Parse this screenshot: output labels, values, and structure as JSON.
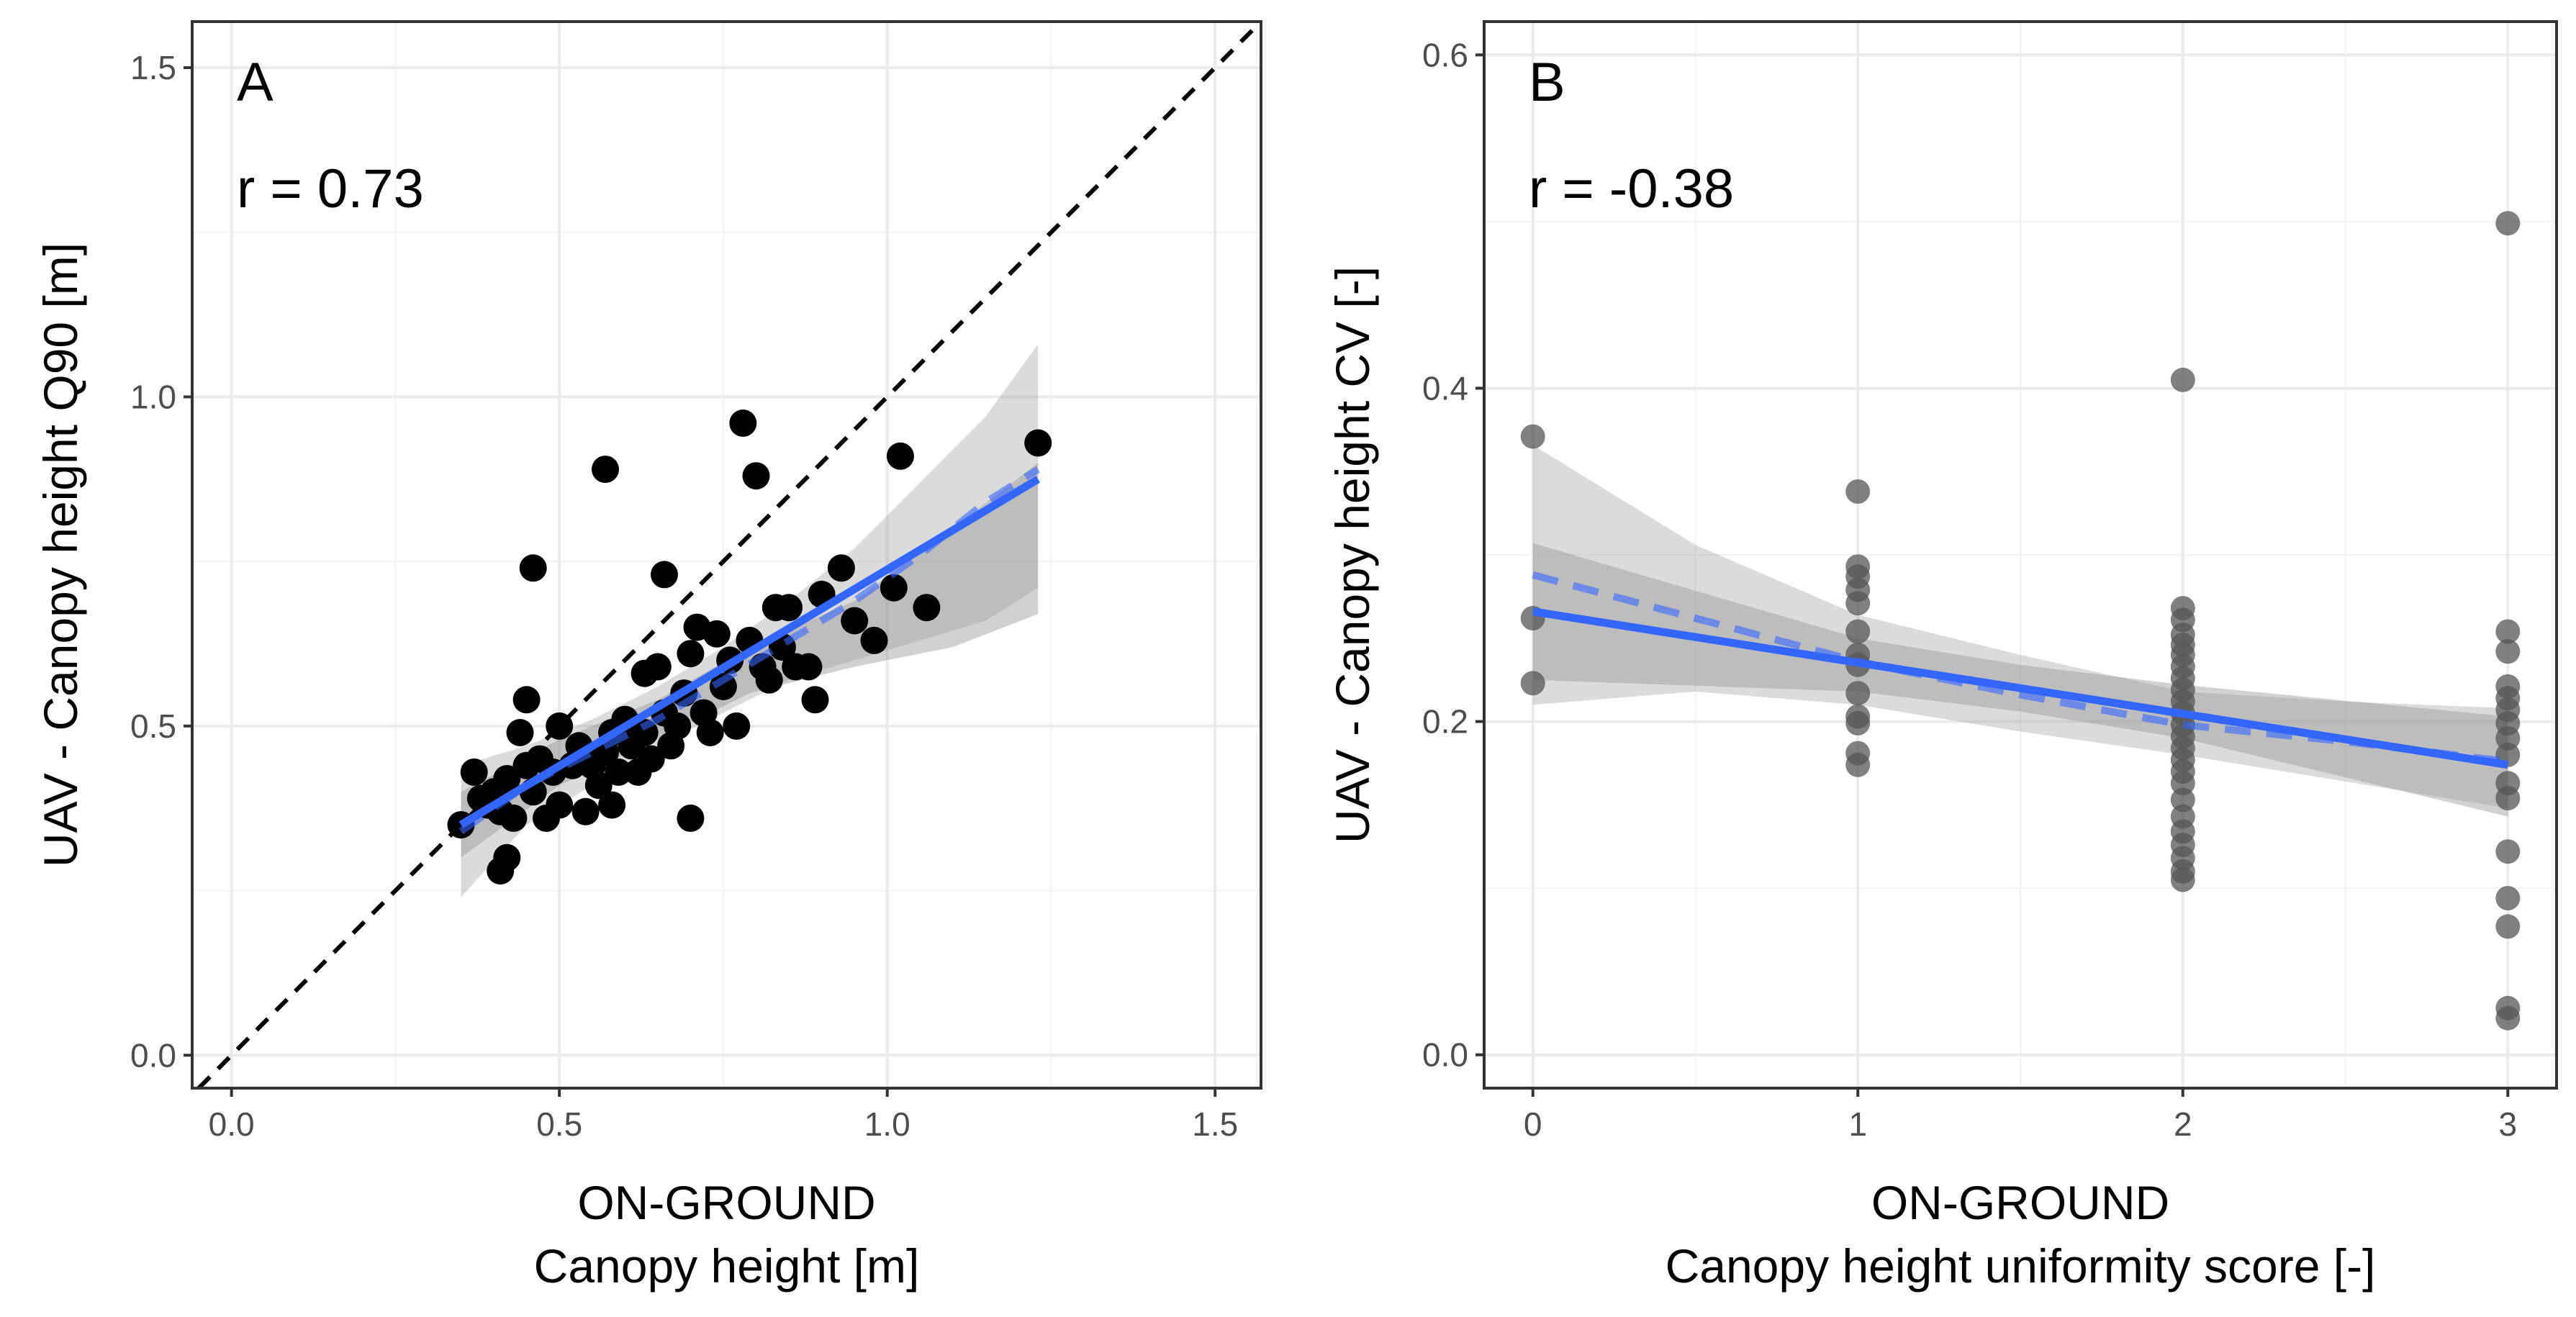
{
  "colors": {
    "fit": "#3366FF",
    "ribbon": "#999999",
    "points_a": "#000000",
    "points_b": "#555555",
    "identity": "#000000"
  },
  "chart_data": [
    {
      "type": "scatter",
      "panel": "A",
      "annotation": "r = 0.73",
      "xlabel_line1": "ON-GROUND",
      "xlabel_line2": "Canopy height [m]",
      "ylabel": "UAV - Canopy height Q90 [m]",
      "xlim": [
        -0.06,
        1.57
      ],
      "ylim": [
        -0.05,
        1.57
      ],
      "xticks": [
        0.0,
        0.5,
        1.0,
        1.5
      ],
      "yticks": [
        0.0,
        0.5,
        1.0,
        1.5
      ],
      "xtick_labels": [
        "0.0",
        "0.5",
        "1.0",
        "1.5"
      ],
      "ytick_labels": [
        "0.0",
        "0.5",
        "1.0",
        "1.5"
      ],
      "identity_line": true,
      "points": [
        [
          0.35,
          0.35
        ],
        [
          0.37,
          0.43
        ],
        [
          0.38,
          0.39
        ],
        [
          0.39,
          0.38
        ],
        [
          0.4,
          0.4
        ],
        [
          0.41,
          0.28
        ],
        [
          0.41,
          0.37
        ],
        [
          0.42,
          0.3
        ],
        [
          0.42,
          0.42
        ],
        [
          0.43,
          0.36
        ],
        [
          0.44,
          0.49
        ],
        [
          0.45,
          0.54
        ],
        [
          0.45,
          0.44
        ],
        [
          0.46,
          0.74
        ],
        [
          0.46,
          0.4
        ],
        [
          0.47,
          0.45
        ],
        [
          0.48,
          0.36
        ],
        [
          0.49,
          0.43
        ],
        [
          0.5,
          0.5
        ],
        [
          0.5,
          0.38
        ],
        [
          0.52,
          0.44
        ],
        [
          0.53,
          0.47
        ],
        [
          0.54,
          0.37
        ],
        [
          0.55,
          0.44
        ],
        [
          0.56,
          0.41
        ],
        [
          0.57,
          0.89
        ],
        [
          0.57,
          0.46
        ],
        [
          0.58,
          0.38
        ],
        [
          0.58,
          0.49
        ],
        [
          0.59,
          0.43
        ],
        [
          0.6,
          0.51
        ],
        [
          0.61,
          0.47
        ],
        [
          0.62,
          0.43
        ],
        [
          0.63,
          0.58
        ],
        [
          0.63,
          0.49
        ],
        [
          0.64,
          0.45
        ],
        [
          0.65,
          0.59
        ],
        [
          0.66,
          0.73
        ],
        [
          0.66,
          0.52
        ],
        [
          0.67,
          0.47
        ],
        [
          0.68,
          0.5
        ],
        [
          0.69,
          0.55
        ],
        [
          0.7,
          0.36
        ],
        [
          0.7,
          0.61
        ],
        [
          0.71,
          0.65
        ],
        [
          0.72,
          0.52
        ],
        [
          0.73,
          0.49
        ],
        [
          0.74,
          0.64
        ],
        [
          0.75,
          0.56
        ],
        [
          0.76,
          0.6
        ],
        [
          0.77,
          0.5
        ],
        [
          0.78,
          0.96
        ],
        [
          0.79,
          0.63
        ],
        [
          0.8,
          0.88
        ],
        [
          0.81,
          0.59
        ],
        [
          0.82,
          0.57
        ],
        [
          0.83,
          0.68
        ],
        [
          0.84,
          0.62
        ],
        [
          0.85,
          0.68
        ],
        [
          0.86,
          0.59
        ],
        [
          0.88,
          0.59
        ],
        [
          0.89,
          0.54
        ],
        [
          0.9,
          0.7
        ],
        [
          0.93,
          0.74
        ],
        [
          0.95,
          0.66
        ],
        [
          0.98,
          0.63
        ],
        [
          1.01,
          0.71
        ],
        [
          1.02,
          0.91
        ],
        [
          1.06,
          0.68
        ],
        [
          1.23,
          0.93
        ]
      ],
      "fit_lm": {
        "x": [
          0.35,
          1.23
        ],
        "y": [
          0.35,
          0.875
        ]
      },
      "ribbon_lm": {
        "x": [
          0.35,
          0.5,
          0.65,
          0.79,
          0.95,
          1.1,
          1.23
        ],
        "lower": [
          0.3,
          0.41,
          0.48,
          0.55,
          0.59,
          0.62,
          0.67
        ],
        "upper": [
          0.4,
          0.48,
          0.54,
          0.62,
          0.69,
          0.8,
          0.9
        ]
      },
      "fit_loess": {
        "x": [
          0.35,
          0.45,
          0.55,
          0.65,
          0.75,
          0.85,
          0.95,
          1.05,
          1.15,
          1.23
        ],
        "y": [
          0.34,
          0.41,
          0.46,
          0.51,
          0.57,
          0.63,
          0.69,
          0.76,
          0.84,
          0.89
        ]
      },
      "ribbon_loess": {
        "x": [
          0.35,
          0.45,
          0.55,
          0.65,
          0.75,
          0.85,
          0.95,
          1.05,
          1.15,
          1.23
        ],
        "lower": [
          0.24,
          0.35,
          0.41,
          0.47,
          0.52,
          0.57,
          0.6,
          0.63,
          0.66,
          0.71
        ],
        "upper": [
          0.44,
          0.47,
          0.51,
          0.56,
          0.62,
          0.69,
          0.77,
          0.87,
          0.97,
          1.08
        ]
      }
    },
    {
      "type": "scatter",
      "panel": "B",
      "annotation": "r = -0.38",
      "xlabel_line1": "ON-GROUND",
      "xlabel_line2": "Canopy height uniformity score [-]",
      "ylabel": "UAV - Canopy height CV [-]",
      "xlim": [
        -0.15,
        3.15
      ],
      "ylim": [
        -0.02,
        0.62
      ],
      "xticks": [
        0,
        1,
        2,
        3
      ],
      "yticks": [
        0.0,
        0.2,
        0.4,
        0.6
      ],
      "xtick_labels": [
        "0",
        "1",
        "2",
        "3"
      ],
      "ytick_labels": [
        "0.0",
        "0.2",
        "0.4",
        "0.6"
      ],
      "identity_line": false,
      "points": [
        [
          0,
          0.371
        ],
        [
          0,
          0.262
        ],
        [
          0,
          0.223
        ],
        [
          1,
          0.338
        ],
        [
          1,
          0.293
        ],
        [
          1,
          0.287
        ],
        [
          1,
          0.279
        ],
        [
          1,
          0.271
        ],
        [
          1,
          0.254
        ],
        [
          1,
          0.24
        ],
        [
          1,
          0.234
        ],
        [
          1,
          0.217
        ],
        [
          1,
          0.203
        ],
        [
          1,
          0.199
        ],
        [
          1,
          0.181
        ],
        [
          1,
          0.174
        ],
        [
          2,
          0.405
        ],
        [
          2,
          0.268
        ],
        [
          2,
          0.261
        ],
        [
          2,
          0.252
        ],
        [
          2,
          0.246
        ],
        [
          2,
          0.24
        ],
        [
          2,
          0.233
        ],
        [
          2,
          0.226
        ],
        [
          2,
          0.219
        ],
        [
          2,
          0.212
        ],
        [
          2,
          0.205
        ],
        [
          2,
          0.198
        ],
        [
          2,
          0.191
        ],
        [
          2,
          0.184
        ],
        [
          2,
          0.177
        ],
        [
          2,
          0.17
        ],
        [
          2,
          0.163
        ],
        [
          2,
          0.153
        ],
        [
          2,
          0.143
        ],
        [
          2,
          0.134
        ],
        [
          2,
          0.126
        ],
        [
          2,
          0.118
        ],
        [
          2,
          0.11
        ],
        [
          2,
          0.105
        ],
        [
          3,
          0.499
        ],
        [
          3,
          0.254
        ],
        [
          3,
          0.242
        ],
        [
          3,
          0.221
        ],
        [
          3,
          0.214
        ],
        [
          3,
          0.207
        ],
        [
          3,
          0.199
        ],
        [
          3,
          0.19
        ],
        [
          3,
          0.18
        ],
        [
          3,
          0.163
        ],
        [
          3,
          0.154
        ],
        [
          3,
          0.122
        ],
        [
          3,
          0.094
        ],
        [
          3,
          0.077
        ],
        [
          3,
          0.028
        ],
        [
          3,
          0.022
        ]
      ],
      "fit_lm": {
        "x": [
          0,
          3
        ],
        "y": [
          0.266,
          0.174
        ]
      },
      "ribbon_lm": {
        "x": [
          0,
          1,
          1.5,
          2,
          3
        ],
        "lower": [
          0.225,
          0.218,
          0.206,
          0.19,
          0.143
        ],
        "upper": [
          0.307,
          0.25,
          0.234,
          0.222,
          0.203
        ]
      },
      "fit_loess": {
        "x": [
          0,
          0.5,
          1,
          1.5,
          2,
          2.5,
          3
        ],
        "y": [
          0.288,
          0.262,
          0.236,
          0.216,
          0.198,
          0.188,
          0.176
        ]
      },
      "ribbon_loess": {
        "x": [
          0,
          0.5,
          1,
          1.5,
          2,
          2.5,
          3
        ],
        "lower": [
          0.21,
          0.218,
          0.21,
          0.194,
          0.18,
          0.164,
          0.148
        ],
        "upper": [
          0.366,
          0.306,
          0.264,
          0.24,
          0.218,
          0.212,
          0.208
        ]
      }
    }
  ]
}
